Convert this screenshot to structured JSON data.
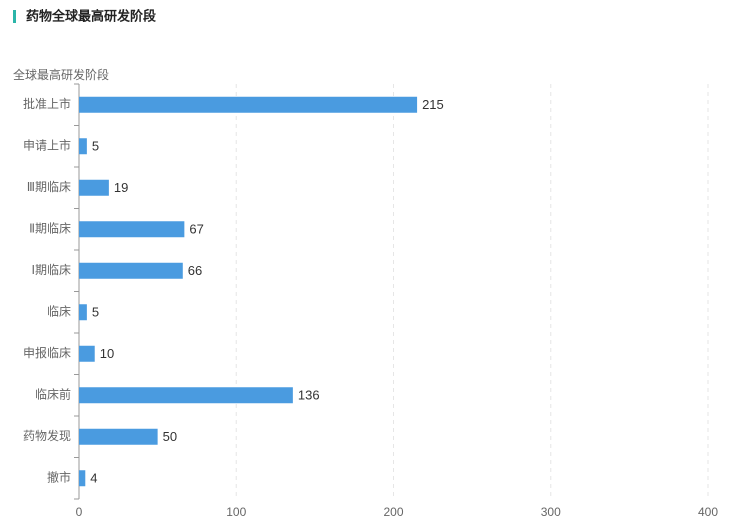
{
  "chart_data": {
    "type": "bar",
    "title": "药物全球最高研发阶段",
    "y_label": "全球最高研发阶段",
    "categories": [
      "批准上市",
      "申请上市",
      "Ⅲ期临床",
      "Ⅱ期临床",
      "Ⅰ期临床",
      "临床",
      "申报临床",
      "临床前",
      "药物发现",
      "撤市"
    ],
    "values": [
      215,
      5,
      19,
      67,
      66,
      5,
      10,
      136,
      50,
      4
    ],
    "color": "#4a9be0",
    "xlim": [
      0,
      400
    ],
    "xticks": [
      0,
      100,
      200,
      300,
      400
    ],
    "grid": true
  }
}
